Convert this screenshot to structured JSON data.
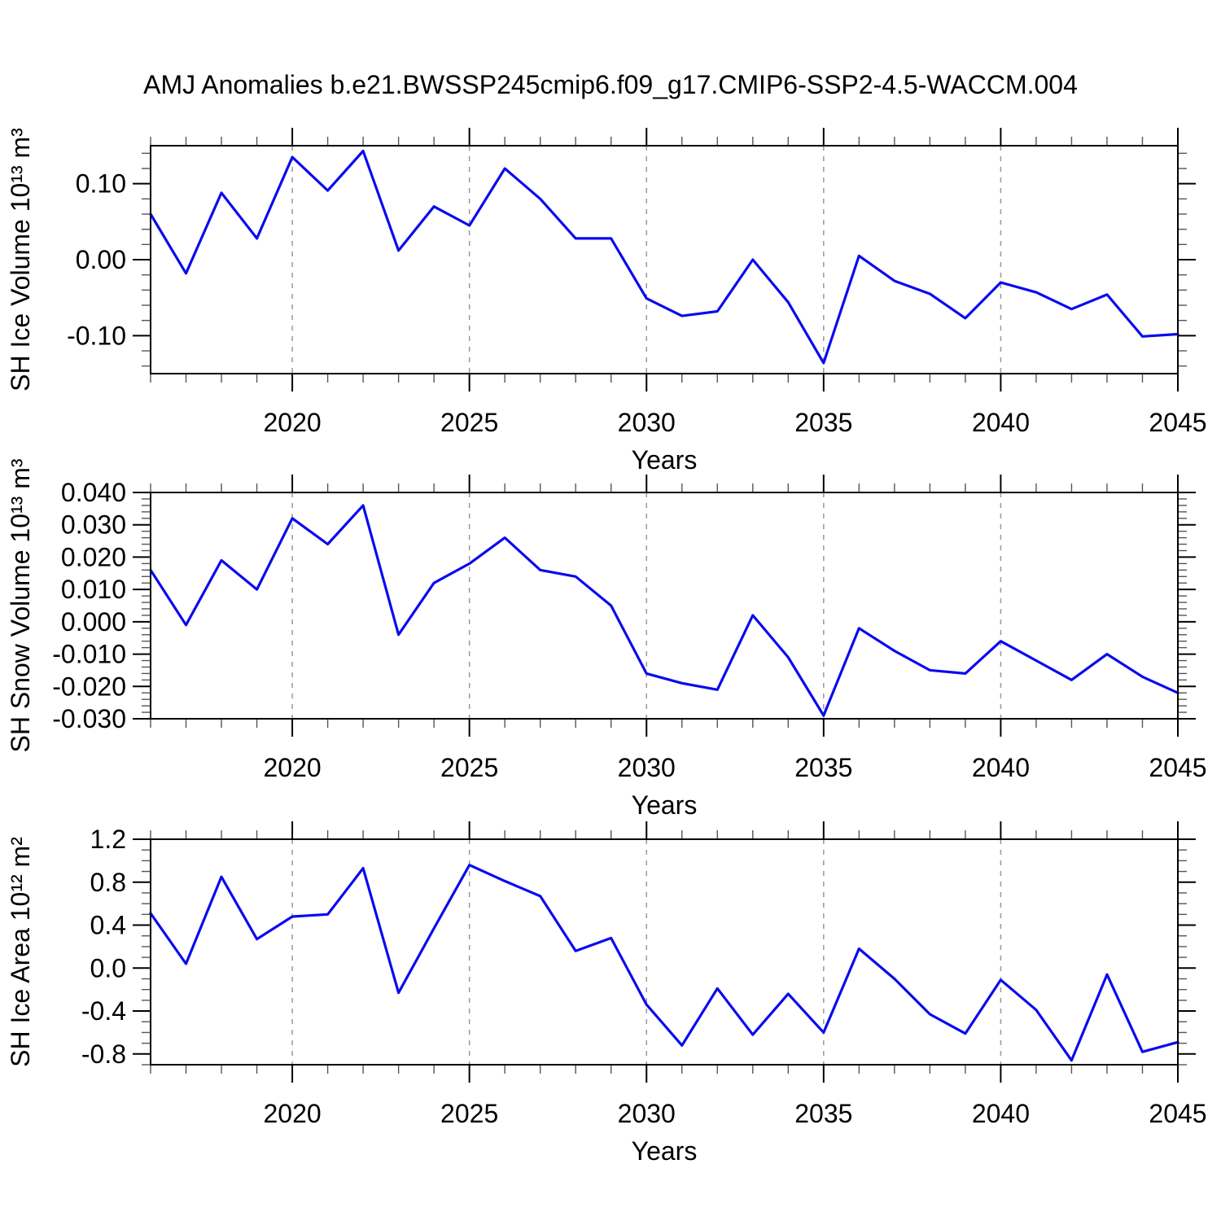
{
  "title": "AMJ Anomalies b.e21.BWSSP245cmip6.f09_g17.CMIP6-SSP2-4.5-WACCM.004",
  "colors": {
    "line": "#0a0af0",
    "grid": "#999999",
    "axis": "#000000",
    "minor_tick": "#555555",
    "text": "#000000",
    "background": "#ffffff"
  },
  "chart_data": [
    {
      "id": "sh-ice-volume",
      "type": "line",
      "ylabel": "SH Ice Volume 10¹³ m³",
      "xlabel": "Years",
      "x": [
        2016,
        2017,
        2018,
        2019,
        2020,
        2021,
        2022,
        2023,
        2024,
        2025,
        2026,
        2027,
        2028,
        2029,
        2030,
        2031,
        2032,
        2033,
        2034,
        2035,
        2036,
        2037,
        2038,
        2039,
        2040,
        2041,
        2042,
        2043,
        2044,
        2045
      ],
      "values": [
        0.06,
        -0.018,
        0.088,
        0.028,
        0.135,
        0.091,
        0.143,
        0.012,
        0.07,
        0.045,
        0.12,
        0.08,
        0.028,
        0.028,
        -0.051,
        -0.074,
        -0.068,
        0.0,
        -0.056,
        -0.136,
        0.005,
        -0.028,
        -0.045,
        -0.077,
        -0.03,
        -0.043,
        -0.065,
        -0.046,
        -0.101,
        -0.098
      ],
      "xlim": [
        2016,
        2045
      ],
      "ylim": [
        -0.15,
        0.15
      ],
      "xticks": {
        "values": [
          2020,
          2025,
          2030,
          2035,
          2040,
          2045
        ],
        "labels": [
          "2020",
          "2025",
          "2030",
          "2035",
          "2040",
          "2045"
        ]
      },
      "xminor_step": 1,
      "yticks": {
        "values": [
          0.1,
          0.0,
          -0.1
        ],
        "labels": [
          "0.10",
          "0.00",
          "-0.10"
        ]
      },
      "yminor_step": 0.02,
      "grid_x": [
        2020,
        2025,
        2030,
        2035,
        2040
      ],
      "grid_style": "vertical-dashed",
      "legend": "none"
    },
    {
      "id": "sh-snow-volume",
      "type": "line",
      "ylabel": "SH Snow Volume 10¹³ m³",
      "xlabel": "Years",
      "x": [
        2016,
        2017,
        2018,
        2019,
        2020,
        2021,
        2022,
        2023,
        2024,
        2025,
        2026,
        2027,
        2028,
        2029,
        2030,
        2031,
        2032,
        2033,
        2034,
        2035,
        2036,
        2037,
        2038,
        2039,
        2040,
        2041,
        2042,
        2043,
        2044,
        2045
      ],
      "values": [
        0.016,
        -0.001,
        0.019,
        0.01,
        0.032,
        0.024,
        0.036,
        -0.004,
        0.012,
        0.018,
        0.026,
        0.016,
        0.014,
        0.005,
        -0.016,
        -0.019,
        -0.021,
        0.002,
        -0.011,
        -0.029,
        -0.002,
        -0.009,
        -0.015,
        -0.016,
        -0.006,
        -0.012,
        -0.018,
        -0.01,
        -0.017,
        -0.022
      ],
      "xlim": [
        2016,
        2045
      ],
      "ylim": [
        -0.03,
        0.04
      ],
      "xticks": {
        "values": [
          2020,
          2025,
          2030,
          2035,
          2040,
          2045
        ],
        "labels": [
          "2020",
          "2025",
          "2030",
          "2035",
          "2040",
          "2045"
        ]
      },
      "xminor_step": 1,
      "yticks": {
        "values": [
          0.04,
          0.03,
          0.02,
          0.01,
          0.0,
          -0.01,
          -0.02,
          -0.03
        ],
        "labels": [
          "0.040",
          "0.030",
          "0.020",
          "0.010",
          "0.000",
          "-0.010",
          "-0.020",
          "-0.030"
        ]
      },
      "yminor_step": 0.002,
      "grid_x": [
        2020,
        2025,
        2030,
        2035,
        2040
      ],
      "grid_style": "vertical-dashed",
      "legend": "none"
    },
    {
      "id": "sh-ice-area",
      "type": "line",
      "ylabel": "SH Ice Area 10¹² m²",
      "xlabel": "Years",
      "x": [
        2016,
        2017,
        2018,
        2019,
        2020,
        2021,
        2022,
        2023,
        2024,
        2025,
        2026,
        2027,
        2028,
        2029,
        2030,
        2031,
        2032,
        2033,
        2034,
        2035,
        2036,
        2037,
        2038,
        2039,
        2040,
        2041,
        2042,
        2043,
        2044,
        2045
      ],
      "values": [
        0.51,
        0.04,
        0.85,
        0.27,
        0.48,
        0.5,
        0.93,
        -0.23,
        0.37,
        0.96,
        0.81,
        0.67,
        0.16,
        0.28,
        -0.34,
        -0.72,
        -0.19,
        -0.62,
        -0.24,
        -0.6,
        0.18,
        -0.1,
        -0.43,
        -0.61,
        -0.11,
        -0.39,
        -0.86,
        -0.06,
        -0.78,
        -0.69
      ],
      "xlim": [
        2016,
        2045
      ],
      "ylim": [
        -0.9,
        1.2
      ],
      "xticks": {
        "values": [
          2020,
          2025,
          2030,
          2035,
          2040,
          2045
        ],
        "labels": [
          "2020",
          "2025",
          "2030",
          "2035",
          "2040",
          "2045"
        ]
      },
      "xminor_step": 1,
      "yticks": {
        "values": [
          1.2,
          0.8,
          0.4,
          0.0,
          -0.4,
          -0.8
        ],
        "labels": [
          "1.2",
          "0.8",
          "0.4",
          "0.0",
          "-0.4",
          "-0.8"
        ]
      },
      "yminor_step": 0.1,
      "grid_x": [
        2020,
        2025,
        2030,
        2035,
        2040
      ],
      "grid_style": "vertical-dashed",
      "legend": "none"
    }
  ]
}
